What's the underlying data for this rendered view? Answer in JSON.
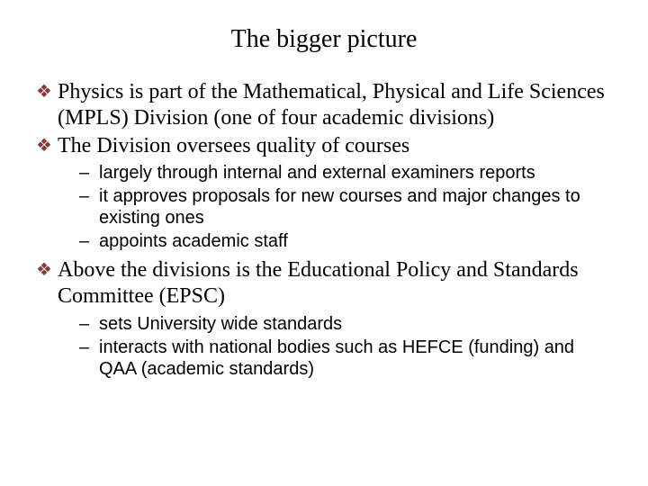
{
  "colors": {
    "background": "#ffffff",
    "text": "#000000",
    "bullet": "#8b3a3a"
  },
  "typography": {
    "title_fontsize": 28,
    "l1_fontsize": 24,
    "l2_fontsize": 20,
    "l1_font": "Times New Roman",
    "l2_font": "Arial",
    "bullet_glyph": "❖",
    "dash_glyph": "–"
  },
  "title": "The bigger picture",
  "items": [
    {
      "text": "Physics is part of the Mathematical, Physical and Life Sciences (MPLS) Division (one of four academic divisions)",
      "sub": []
    },
    {
      "text": "The Division oversees quality of courses",
      "sub": [
        "largely through internal and external examiners reports",
        "it approves proposals for new courses and major changes to existing ones",
        "appoints academic staff"
      ]
    },
    {
      "text": "Above the divisions is the Educational Policy and Standards Committee (EPSC)",
      "sub": [
        "sets University wide standards",
        "interacts with national bodies such as HEFCE (funding) and QAA (academic standards)"
      ]
    }
  ]
}
